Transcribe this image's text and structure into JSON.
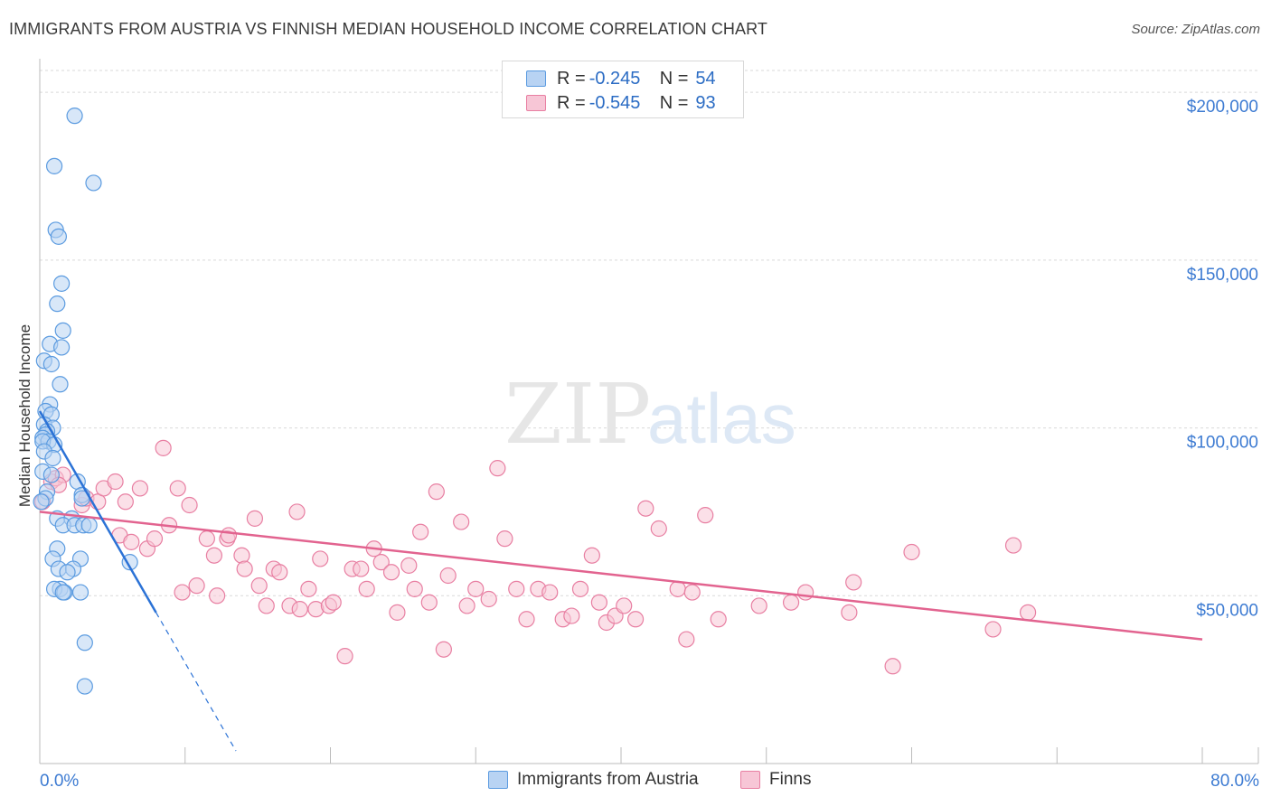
{
  "header": {
    "title": "IMMIGRANTS FROM AUSTRIA VS FINNISH MEDIAN HOUSEHOLD INCOME CORRELATION CHART",
    "source": "Source: ZipAtlas.com"
  },
  "legend_top": {
    "rows": [
      {
        "r_label": "R = ",
        "r_value": "-0.245",
        "n_label": "N = ",
        "n_value": "54"
      },
      {
        "r_label": "R = ",
        "r_value": "-0.545",
        "n_label": "N = ",
        "n_value": "93"
      }
    ]
  },
  "legend_bottom": {
    "items": [
      {
        "label": "Immigrants from Austria"
      },
      {
        "label": "Finns"
      }
    ]
  },
  "watermark": {
    "zip": "ZIP",
    "atlas": "atlas"
  },
  "colors": {
    "blue": "#5b9be0",
    "blue_fill": "#b8d3f3",
    "blue_line": "#2b72d6",
    "pink": "#e87fa2",
    "pink_fill": "#f7c6d6",
    "pink_line": "#e2638f",
    "axis_label": "#3d7bd2",
    "grid": "#d9d9d9"
  },
  "chart_data": {
    "type": "scatter",
    "title": "IMMIGRANTS FROM AUSTRIA VS FINNISH MEDIAN HOUSEHOLD INCOME CORRELATION CHART",
    "xlabel": "",
    "ylabel": "Median Household Income",
    "xlim": [
      0,
      80
    ],
    "ylim": [
      0,
      210000
    ],
    "x_tick_labels": [
      "0.0%",
      "80.0%"
    ],
    "y_ticks": [
      50000,
      100000,
      150000,
      200000
    ],
    "y_tick_labels": [
      "$50,000",
      "$100,000",
      "$150,000",
      "$200,000"
    ],
    "series": [
      {
        "name": "Immigrants from Austria",
        "r": -0.245,
        "n": 54,
        "trend": {
          "x0": 0.0,
          "y0": 105000,
          "x1": 8.0,
          "y1": 45000,
          "dash_to_x": 13.5
        },
        "points": [
          [
            2.4,
            193000
          ],
          [
            1.0,
            178000
          ],
          [
            3.7,
            173000
          ],
          [
            1.1,
            159000
          ],
          [
            1.3,
            157000
          ],
          [
            1.5,
            143000
          ],
          [
            1.2,
            137000
          ],
          [
            1.6,
            129000
          ],
          [
            0.7,
            125000
          ],
          [
            1.5,
            124000
          ],
          [
            0.3,
            120000
          ],
          [
            0.8,
            119000
          ],
          [
            1.4,
            113000
          ],
          [
            0.7,
            107000
          ],
          [
            0.4,
            105000
          ],
          [
            0.8,
            104000
          ],
          [
            0.3,
            101000
          ],
          [
            0.9,
            100000
          ],
          [
            0.5,
            99000
          ],
          [
            0.4,
            98000
          ],
          [
            0.2,
            97000
          ],
          [
            0.6,
            96000
          ],
          [
            0.2,
            96000
          ],
          [
            1.0,
            95000
          ],
          [
            0.3,
            93000
          ],
          [
            0.9,
            91000
          ],
          [
            0.2,
            87000
          ],
          [
            0.8,
            86000
          ],
          [
            2.6,
            84000
          ],
          [
            0.5,
            81000
          ],
          [
            2.9,
            80000
          ],
          [
            2.9,
            79000
          ],
          [
            0.4,
            79000
          ],
          [
            1.2,
            73000
          ],
          [
            2.2,
            73000
          ],
          [
            1.6,
            71000
          ],
          [
            2.4,
            71000
          ],
          [
            3.0,
            71000
          ],
          [
            3.4,
            71000
          ],
          [
            1.2,
            64000
          ],
          [
            0.9,
            61000
          ],
          [
            2.8,
            61000
          ],
          [
            6.2,
            60000
          ],
          [
            1.3,
            58000
          ],
          [
            2.3,
            58000
          ],
          [
            1.9,
            57000
          ],
          [
            1.4,
            52000
          ],
          [
            1.0,
            52000
          ],
          [
            1.7,
            51000
          ],
          [
            2.8,
            51000
          ],
          [
            1.6,
            51000
          ],
          [
            3.1,
            36000
          ],
          [
            3.1,
            23000
          ],
          [
            0.1,
            78000
          ]
        ]
      },
      {
        "name": "Finns",
        "r": -0.545,
        "n": 93,
        "trend": {
          "x0": 0.0,
          "y0": 75000,
          "x1": 80.0,
          "y1": 37000
        },
        "points": [
          [
            0.2,
            78000
          ],
          [
            0.8,
            84000
          ],
          [
            1.1,
            85000
          ],
          [
            1.6,
            86000
          ],
          [
            1.3,
            83000
          ],
          [
            2.9,
            77000
          ],
          [
            3.2,
            79000
          ],
          [
            4.0,
            78000
          ],
          [
            4.4,
            82000
          ],
          [
            5.2,
            84000
          ],
          [
            5.5,
            68000
          ],
          [
            5.9,
            78000
          ],
          [
            6.3,
            66000
          ],
          [
            6.9,
            82000
          ],
          [
            7.4,
            64000
          ],
          [
            7.9,
            67000
          ],
          [
            8.5,
            94000
          ],
          [
            8.9,
            71000
          ],
          [
            9.5,
            82000
          ],
          [
            9.8,
            51000
          ],
          [
            10.3,
            77000
          ],
          [
            10.8,
            53000
          ],
          [
            11.5,
            67000
          ],
          [
            12.0,
            62000
          ],
          [
            12.2,
            50000
          ],
          [
            12.9,
            67000
          ],
          [
            13.0,
            68000
          ],
          [
            13.9,
            62000
          ],
          [
            14.1,
            58000
          ],
          [
            14.8,
            73000
          ],
          [
            15.1,
            53000
          ],
          [
            15.6,
            47000
          ],
          [
            16.1,
            58000
          ],
          [
            16.5,
            57000
          ],
          [
            17.2,
            47000
          ],
          [
            17.7,
            75000
          ],
          [
            17.9,
            46000
          ],
          [
            18.5,
            52000
          ],
          [
            19.0,
            46000
          ],
          [
            19.3,
            61000
          ],
          [
            19.9,
            47000
          ],
          [
            20.2,
            48000
          ],
          [
            21.0,
            32000
          ],
          [
            21.5,
            58000
          ],
          [
            22.1,
            58000
          ],
          [
            22.5,
            52000
          ],
          [
            23.0,
            64000
          ],
          [
            23.5,
            60000
          ],
          [
            24.2,
            57000
          ],
          [
            24.6,
            45000
          ],
          [
            25.4,
            59000
          ],
          [
            25.8,
            52000
          ],
          [
            26.2,
            69000
          ],
          [
            26.8,
            48000
          ],
          [
            27.3,
            81000
          ],
          [
            27.8,
            34000
          ],
          [
            28.1,
            56000
          ],
          [
            29.0,
            72000
          ],
          [
            29.4,
            47000
          ],
          [
            30.0,
            52000
          ],
          [
            30.9,
            49000
          ],
          [
            31.5,
            88000
          ],
          [
            32.0,
            67000
          ],
          [
            32.8,
            52000
          ],
          [
            33.5,
            43000
          ],
          [
            34.3,
            52000
          ],
          [
            35.1,
            51000
          ],
          [
            36.0,
            43000
          ],
          [
            36.6,
            44000
          ],
          [
            37.2,
            52000
          ],
          [
            38.0,
            62000
          ],
          [
            38.5,
            48000
          ],
          [
            39.0,
            42000
          ],
          [
            39.6,
            44000
          ],
          [
            40.2,
            47000
          ],
          [
            41.0,
            43000
          ],
          [
            41.7,
            76000
          ],
          [
            42.6,
            70000
          ],
          [
            43.9,
            52000
          ],
          [
            44.5,
            37000
          ],
          [
            44.9,
            51000
          ],
          [
            45.8,
            74000
          ],
          [
            46.7,
            43000
          ],
          [
            49.5,
            47000
          ],
          [
            51.7,
            48000
          ],
          [
            52.7,
            51000
          ],
          [
            55.7,
            45000
          ],
          [
            56.0,
            54000
          ],
          [
            58.7,
            29000
          ],
          [
            60.0,
            63000
          ],
          [
            65.6,
            40000
          ],
          [
            67.0,
            65000
          ],
          [
            68.0,
            45000
          ]
        ]
      }
    ]
  }
}
